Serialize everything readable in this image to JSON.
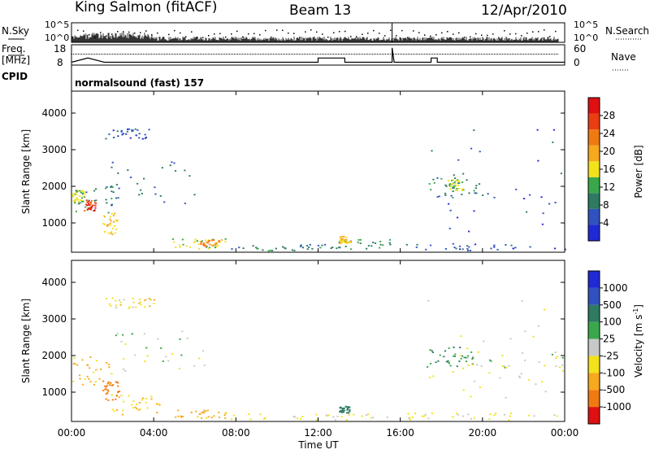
{
  "header": {
    "station": "King Salmon (fitACF)",
    "beam": "Beam 13",
    "date": "12/Apr/2010"
  },
  "strip_labels": {
    "nsky": "N.Sky",
    "nsky_ticks": [
      "10^5",
      "10^0"
    ],
    "nsearch": "N.Search",
    "nsearch_ticks": [
      "10^5",
      "10^0"
    ],
    "freq_line1": "Freq.",
    "freq_line2": "[MHz]",
    "freq_ticks": [
      "18",
      "8"
    ],
    "nave": "Nave",
    "nave_ticks": [
      "60",
      "0"
    ],
    "cpid": "CPID",
    "cpid_text": "normalsound (fast) 157"
  },
  "colors": {
    "power_scale": [
      "#1f2ad4",
      "#2f52c0",
      "#2e7a63",
      "#3aa84a",
      "#f2e21a",
      "#f7a81c",
      "#f07a12",
      "#e83e12",
      "#e01010"
    ],
    "velocity_scale": [
      "#1f2ad4",
      "#2f52c0",
      "#2e7a63",
      "#3aa84a",
      "#c8c8c8",
      "#f2e21a",
      "#f7a81c",
      "#f07a12",
      "#e01010"
    ]
  },
  "chart_data": [
    {
      "type": "heatmap",
      "panel": "power",
      "ylabel": "Slant Range [km]",
      "yticks": [
        "1000",
        "2000",
        "3000",
        "4000"
      ],
      "ylim": [
        200,
        4600
      ],
      "xlim_hours": [
        0,
        24
      ],
      "colorbar_label": "Power [dB]",
      "colorbar_ticks": [
        "4",
        "8",
        "12",
        "16",
        "20",
        "24",
        "28"
      ],
      "colorbar_range": [
        0,
        32
      ],
      "regions": [
        {
          "t0": 0.1,
          "t1": 2.0,
          "r0": 1300,
          "r1": 2000,
          "level": 10
        },
        {
          "t0": 0.6,
          "t1": 1.2,
          "r0": 1350,
          "r1": 1650,
          "level": 27
        },
        {
          "t0": 0.0,
          "t1": 0.6,
          "r0": 1600,
          "r1": 1900,
          "level": 15
        },
        {
          "t0": 1.5,
          "t1": 2.2,
          "r0": 700,
          "r1": 1300,
          "level": 17
        },
        {
          "t0": 1.6,
          "t1": 6.0,
          "r0": 1500,
          "r1": 2700,
          "level": 7
        },
        {
          "t0": 1.6,
          "t1": 3.8,
          "r0": 3300,
          "r1": 3600,
          "level": 5
        },
        {
          "t0": 4.8,
          "t1": 7.5,
          "r0": 300,
          "r1": 600,
          "level": 14
        },
        {
          "t0": 6.2,
          "t1": 7.3,
          "r0": 380,
          "r1": 560,
          "level": 22
        },
        {
          "t0": 7.5,
          "t1": 12.5,
          "r0": 250,
          "r1": 450,
          "level": 9
        },
        {
          "t0": 12.5,
          "t1": 15.6,
          "r0": 300,
          "r1": 560,
          "level": 10
        },
        {
          "t0": 13.0,
          "t1": 13.6,
          "r0": 450,
          "r1": 650,
          "level": 18
        },
        {
          "t0": 16.2,
          "t1": 24.0,
          "r0": 250,
          "r1": 450,
          "level": 6
        },
        {
          "t0": 17.0,
          "t1": 24.0,
          "r0": 700,
          "r1": 3600,
          "level": 5
        },
        {
          "t0": 17.0,
          "t1": 20.0,
          "r0": 1700,
          "r1": 2400,
          "level": 9
        },
        {
          "t0": 18.3,
          "t1": 19.0,
          "r0": 1900,
          "r1": 2200,
          "level": 15
        }
      ]
    },
    {
      "type": "heatmap",
      "panel": "velocity",
      "ylabel": "Slant Range [km]",
      "yticks": [
        "1000",
        "2000",
        "3000",
        "4000"
      ],
      "ylim": [
        200,
        4600
      ],
      "xlim_hours": [
        0,
        24
      ],
      "xlabel": "Time UT",
      "xticks": [
        "00:00",
        "04:00",
        "08:00",
        "12:00",
        "16:00",
        "20:00",
        "00:00"
      ],
      "colorbar_label": "Velocity [m s",
      "colorbar_ticks": [
        "1000",
        "500",
        "100",
        "25",
        "-25",
        "-100",
        "-500",
        "-1000"
      ],
      "regions": [
        {
          "t0": 0.0,
          "t1": 2.0,
          "r0": 1200,
          "r1": 2000,
          "vel": -120
        },
        {
          "t0": 1.5,
          "t1": 2.3,
          "r0": 800,
          "r1": 1400,
          "vel": -600
        },
        {
          "t0": 2.0,
          "t1": 6.5,
          "r0": 1600,
          "r1": 2700,
          "vel": 0
        },
        {
          "t0": 1.6,
          "t1": 4.0,
          "r0": 3300,
          "r1": 3600,
          "vel": -60
        },
        {
          "t0": 1.8,
          "t1": 4.5,
          "r0": 400,
          "r1": 1000,
          "vel": -90
        },
        {
          "t0": 5.0,
          "t1": 7.5,
          "r0": 300,
          "r1": 550,
          "vel": -150
        },
        {
          "t0": 7.5,
          "t1": 15.6,
          "r0": 250,
          "r1": 420,
          "vel": -40
        },
        {
          "t0": 13.0,
          "t1": 13.5,
          "r0": 450,
          "r1": 650,
          "vel": 150
        },
        {
          "t0": 16.2,
          "t1": 24.0,
          "r0": 250,
          "r1": 450,
          "vel": -40
        },
        {
          "t0": 17.0,
          "t1": 19.5,
          "r0": 1700,
          "r1": 2300,
          "vel": 120
        },
        {
          "t0": 18.5,
          "t1": 24.0,
          "r0": 1300,
          "r1": 2100,
          "vel": 0
        },
        {
          "t0": 17.0,
          "t1": 24.0,
          "r0": 700,
          "r1": 3600,
          "vel": -30
        }
      ]
    }
  ]
}
